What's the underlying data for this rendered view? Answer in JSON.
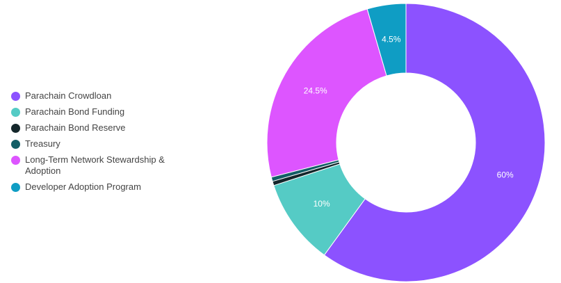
{
  "chart_data": {
    "type": "pie",
    "donut": true,
    "legend_position": "left",
    "slices": [
      {
        "label": "Parachain Crowdloan",
        "value": 60,
        "display": "60%",
        "color": "#8c52ff"
      },
      {
        "label": "Parachain Bond Funding",
        "value": 10,
        "display": "10%",
        "color": "#55cbc5"
      },
      {
        "label": "Parachain Bond Reserve",
        "value": 0.5,
        "display": "",
        "color": "#14272b"
      },
      {
        "label": "Treasury",
        "value": 0.5,
        "display": "",
        "color": "#125e66"
      },
      {
        "label": "Long-Term Network Stewardship & Adoption",
        "value": 24.5,
        "display": "24.5%",
        "color": "#dd55ff"
      },
      {
        "label": "Developer Adoption Program",
        "value": 4.5,
        "display": "4.5%",
        "color": "#0f9dc4"
      }
    ]
  }
}
